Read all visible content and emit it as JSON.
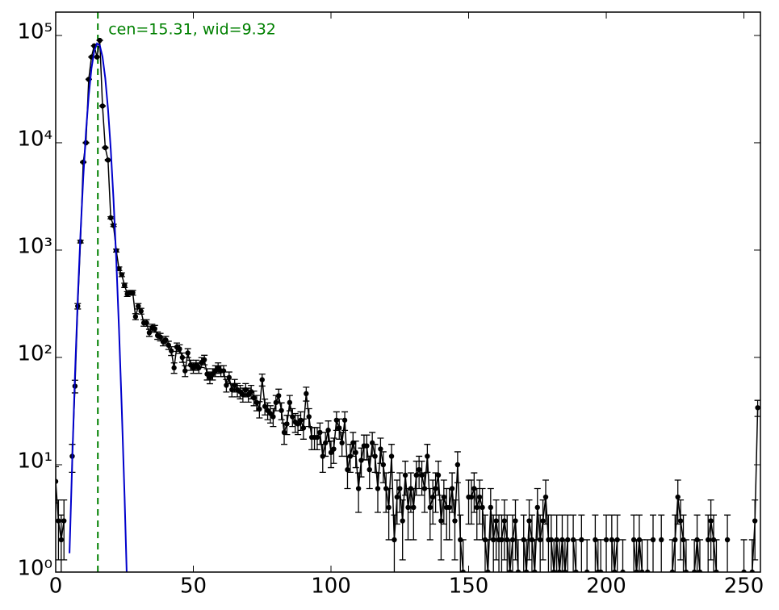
{
  "chart_data": {
    "type": "errorbar",
    "annotation": "cen=15.31, wid=9.32",
    "center_line": 15.31,
    "center_color": "#008000",
    "color": "#000000",
    "log_y": true,
    "xlim": [
      0,
      256
    ],
    "ylim": [
      1,
      165000
    ],
    "xticks": [
      0,
      50,
      100,
      150,
      200,
      250
    ],
    "yticks": [
      {
        "value": 1,
        "label": "10⁰"
      },
      {
        "value": 10,
        "label": "10¹"
      },
      {
        "value": 100,
        "label": "10²"
      },
      {
        "value": 1000,
        "label": "10³"
      },
      {
        "value": 10000,
        "label": "10⁴"
      },
      {
        "value": 100000,
        "label": "10⁵"
      }
    ],
    "x": [
      0,
      1,
      2,
      3,
      4,
      5,
      6,
      7,
      8,
      9,
      10,
      11,
      12,
      13,
      14,
      15,
      16,
      17,
      18,
      19,
      20,
      21,
      22,
      23,
      24,
      25,
      26,
      27,
      28,
      29,
      30,
      31,
      32,
      33,
      34,
      35,
      36,
      37,
      38,
      39,
      40,
      41,
      42,
      43,
      44,
      45,
      46,
      47,
      48,
      49,
      50,
      51,
      52,
      53,
      54,
      55,
      56,
      57,
      58,
      59,
      60,
      61,
      62,
      63,
      64,
      65,
      66,
      67,
      68,
      69,
      70,
      71,
      72,
      73,
      74,
      75,
      76,
      77,
      78,
      79,
      80,
      81,
      82,
      83,
      84,
      85,
      86,
      87,
      88,
      89,
      90,
      91,
      92,
      93,
      94,
      95,
      96,
      97,
      98,
      99,
      100,
      101,
      102,
      103,
      104,
      105,
      106,
      107,
      108,
      109,
      110,
      111,
      112,
      113,
      114,
      115,
      116,
      117,
      118,
      119,
      120,
      121,
      122,
      123,
      124,
      125,
      126,
      127,
      128,
      129,
      130,
      131,
      132,
      133,
      134,
      135,
      136,
      137,
      138,
      139,
      140,
      141,
      142,
      143,
      144,
      145,
      146,
      147,
      148,
      149,
      150,
      151,
      152,
      153,
      154,
      155,
      156,
      157,
      158,
      159,
      160,
      161,
      162,
      163,
      164,
      165,
      166,
      167,
      168,
      169,
      170,
      171,
      172,
      173,
      174,
      175,
      176,
      177,
      178,
      179,
      180,
      181,
      182,
      183,
      184,
      185,
      186,
      187,
      188,
      189,
      190,
      191,
      192,
      193,
      194,
      195,
      196,
      197,
      198,
      199,
      200,
      201,
      202,
      203,
      204,
      205,
      206,
      207,
      208,
      209,
      210,
      211,
      212,
      213,
      214,
      215,
      216,
      217,
      218,
      219,
      220,
      221,
      222,
      223,
      224,
      225,
      226,
      227,
      228,
      229,
      230,
      231,
      232,
      233,
      234,
      235,
      236,
      237,
      238,
      239,
      240,
      241,
      242,
      243,
      244,
      245,
      246,
      247,
      248,
      249,
      250,
      251,
      252,
      253,
      254,
      255
    ],
    "values": [
      7,
      3,
      2,
      3,
      null,
      null,
      12,
      54,
      300,
      1200,
      6600,
      10000,
      39000,
      63000,
      80000,
      63000,
      90000,
      22000,
      9000,
      6900,
      2000,
      1700,
      990,
      670,
      590,
      470,
      390,
      400,
      400,
      240,
      300,
      270,
      210,
      210,
      170,
      190,
      185,
      160,
      155,
      140,
      145,
      130,
      115,
      80,
      125,
      120,
      100,
      75,
      110,
      85,
      80,
      85,
      80,
      90,
      95,
      70,
      65,
      70,
      75,
      80,
      75,
      75,
      55,
      65,
      50,
      55,
      50,
      48,
      45,
      50,
      45,
      48,
      42,
      38,
      33,
      62,
      35,
      32,
      30,
      28,
      38,
      44,
      32,
      20,
      24,
      38,
      28,
      25,
      24,
      26,
      22,
      46,
      28,
      18,
      18,
      18,
      20,
      12,
      16,
      21,
      13,
      14,
      26,
      22,
      16,
      26,
      9,
      12,
      16,
      13,
      6,
      11,
      15,
      15,
      9,
      16,
      12,
      6,
      14,
      10,
      6,
      4,
      12,
      2,
      5,
      6,
      3,
      8,
      4,
      6,
      4,
      8,
      9,
      8,
      6,
      12,
      4,
      5,
      6,
      8,
      3,
      5,
      4,
      4,
      6,
      3,
      10,
      2,
      1,
      null,
      5,
      5,
      6,
      4,
      5,
      4,
      2,
      1,
      4,
      2,
      3,
      2,
      2,
      3,
      2,
      1,
      2,
      3,
      1,
      null,
      2,
      1,
      3,
      2,
      1,
      4,
      2,
      3,
      5,
      2,
      2,
      1,
      2,
      1,
      2,
      1,
      2,
      null,
      2,
      1,
      null,
      2,
      null,
      1,
      null,
      null,
      2,
      1,
      1,
      null,
      2,
      null,
      2,
      1,
      2,
      null,
      1,
      null,
      null,
      null,
      2,
      1,
      2,
      1,
      null,
      1,
      null,
      2,
      null,
      null,
      2,
      null,
      null,
      null,
      1,
      2,
      5,
      3,
      2,
      1,
      null,
      null,
      1,
      2,
      1,
      null,
      null,
      2,
      3,
      2,
      1,
      null,
      null,
      null,
      2,
      null,
      null,
      null,
      null,
      null,
      1,
      null,
      null,
      1,
      3,
      34
    ],
    "errors": [
      2.6,
      1.7,
      1.4,
      1.7,
      null,
      null,
      3.5,
      7.3,
      17.3,
      34.6,
      81.2,
      100,
      197,
      251,
      283,
      251,
      300,
      148,
      94.9,
      83.1,
      44.7,
      41.2,
      31.5,
      25.9,
      24.3,
      21.7,
      19.7,
      20,
      20,
      15.5,
      17.3,
      16.4,
      14.5,
      14.5,
      13,
      13.8,
      13.6,
      12.6,
      12.4,
      11.8,
      12,
      11.4,
      10.7,
      8.9,
      11.2,
      11,
      10,
      8.7,
      10.5,
      9.2,
      8.9,
      9.2,
      8.9,
      9.5,
      9.7,
      8.4,
      8.1,
      8.4,
      8.7,
      8.9,
      8.7,
      8.7,
      7.4,
      8.1,
      7.1,
      7.4,
      7.1,
      6.9,
      6.7,
      7.1,
      6.7,
      6.9,
      6.5,
      6.2,
      5.7,
      7.9,
      5.9,
      5.7,
      5.5,
      5.3,
      6.2,
      6.6,
      5.7,
      4.5,
      4.9,
      6.2,
      5.3,
      5,
      4.9,
      5.1,
      4.7,
      6.8,
      5.3,
      4.2,
      4.2,
      4.2,
      4.5,
      3.5,
      4,
      4.6,
      3.6,
      3.7,
      5.1,
      4.7,
      4,
      5.1,
      3,
      3.5,
      4,
      3.6,
      2.4,
      3.3,
      3.9,
      3.9,
      3,
      4,
      3.5,
      2.4,
      3.7,
      3.2,
      2.4,
      2,
      3.5,
      1.4,
      2.2,
      2.4,
      1.7,
      2.8,
      2,
      2.4,
      2,
      2.8,
      3,
      2.8,
      2.4,
      3.5,
      2,
      2.2,
      2.4,
      2.8,
      1.7,
      2.2,
      2,
      2,
      2.4,
      1.7,
      3.2,
      1.4,
      1,
      null,
      2.2,
      2.2,
      2.4,
      2,
      2.2,
      2,
      1.4,
      1,
      2,
      1.4,
      1.7,
      1.4,
      1.4,
      1.7,
      1.4,
      1,
      1.4,
      1.7,
      1,
      null,
      1.4,
      1,
      1.7,
      1.4,
      1,
      2,
      1.4,
      1.7,
      2.2,
      1.4,
      1.4,
      1,
      1.4,
      1,
      1.4,
      1,
      1.4,
      null,
      1.4,
      1,
      null,
      1.4,
      null,
      1,
      null,
      null,
      1.4,
      1,
      1,
      null,
      1.4,
      null,
      1.4,
      1,
      1.4,
      null,
      1,
      null,
      null,
      null,
      1.4,
      1,
      1.4,
      1,
      null,
      1,
      null,
      1.4,
      null,
      null,
      1.4,
      null,
      null,
      null,
      1,
      1.4,
      2.2,
      1.7,
      1.4,
      1,
      null,
      null,
      1,
      1.4,
      1,
      null,
      null,
      1.4,
      1.7,
      1.4,
      1,
      null,
      null,
      null,
      1.4,
      null,
      null,
      null,
      null,
      null,
      1,
      null,
      null,
      1,
      1.7,
      5.8
    ],
    "fit": {
      "color": "#0000cc",
      "x": [
        5,
        6,
        7,
        8,
        9,
        10,
        11,
        12,
        13,
        14,
        15,
        16,
        17,
        18,
        19,
        20,
        21,
        22,
        23,
        24,
        25,
        26
      ],
      "values": [
        1.5,
        11,
        69,
        348,
        1410,
        4680,
        12600,
        27600,
        49200,
        71400,
        84200,
        80800,
        63100,
        40000,
        20600,
        8690,
        2980,
        825,
        185,
        34,
        5.1,
        0.62
      ]
    }
  }
}
